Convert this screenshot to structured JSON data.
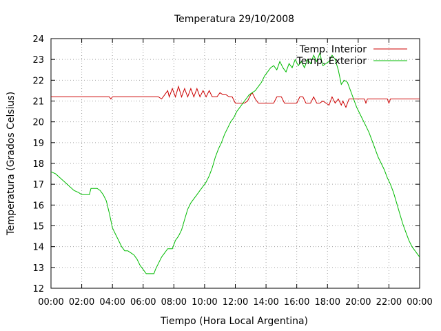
{
  "chart_data": {
    "type": "line",
    "title": "Temperatura 29/10/2008",
    "xlabel": "Tiempo (Hora Local Argentina)",
    "ylabel": "Temperatura (Grados Celsius)",
    "xlim": [
      0,
      24
    ],
    "ylim": [
      12,
      24
    ],
    "x_unit": "hours",
    "x_ticks": [
      {
        "value": 0,
        "label": "00:00"
      },
      {
        "value": 2,
        "label": "02:00"
      },
      {
        "value": 4,
        "label": "04:00"
      },
      {
        "value": 6,
        "label": "06:00"
      },
      {
        "value": 8,
        "label": "08:00"
      },
      {
        "value": 10,
        "label": "10:00"
      },
      {
        "value": 12,
        "label": "12:00"
      },
      {
        "value": 14,
        "label": "14:00"
      },
      {
        "value": 16,
        "label": "16:00"
      },
      {
        "value": 18,
        "label": "18:00"
      },
      {
        "value": 20,
        "label": "20:00"
      },
      {
        "value": 22,
        "label": "22:00"
      },
      {
        "value": 24,
        "label": "00:00"
      }
    ],
    "y_ticks": [
      12,
      13,
      14,
      15,
      16,
      17,
      18,
      19,
      20,
      21,
      22,
      23,
      24
    ],
    "grid": true,
    "legend_position": "top-right",
    "series": [
      {
        "name": "Temp. Interior",
        "color": "#cc0000",
        "points": [
          [
            0,
            21.2
          ],
          [
            3.8,
            21.2
          ],
          [
            3.9,
            21.1
          ],
          [
            4.0,
            21.2
          ],
          [
            7.0,
            21.2
          ],
          [
            7.2,
            21.1
          ],
          [
            7.4,
            21.3
          ],
          [
            7.6,
            21.5
          ],
          [
            7.7,
            21.2
          ],
          [
            7.9,
            21.6
          ],
          [
            8.1,
            21.2
          ],
          [
            8.3,
            21.7
          ],
          [
            8.5,
            21.2
          ],
          [
            8.7,
            21.6
          ],
          [
            8.9,
            21.2
          ],
          [
            9.1,
            21.6
          ],
          [
            9.3,
            21.2
          ],
          [
            9.5,
            21.6
          ],
          [
            9.7,
            21.2
          ],
          [
            9.9,
            21.5
          ],
          [
            10.1,
            21.2
          ],
          [
            10.3,
            21.5
          ],
          [
            10.5,
            21.2
          ],
          [
            10.8,
            21.2
          ],
          [
            11.0,
            21.4
          ],
          [
            11.2,
            21.3
          ],
          [
            11.4,
            21.3
          ],
          [
            11.6,
            21.2
          ],
          [
            11.8,
            21.2
          ],
          [
            12.0,
            20.9
          ],
          [
            12.6,
            20.9
          ],
          [
            12.8,
            21.0
          ],
          [
            13.0,
            21.3
          ],
          [
            13.1,
            21.4
          ],
          [
            13.3,
            21.1
          ],
          [
            13.5,
            20.9
          ],
          [
            14.5,
            20.9
          ],
          [
            14.7,
            21.2
          ],
          [
            15.0,
            21.2
          ],
          [
            15.2,
            20.9
          ],
          [
            16.0,
            20.9
          ],
          [
            16.2,
            21.2
          ],
          [
            16.4,
            21.2
          ],
          [
            16.6,
            20.9
          ],
          [
            16.9,
            20.9
          ],
          [
            17.1,
            21.2
          ],
          [
            17.3,
            20.9
          ],
          [
            17.5,
            20.9
          ],
          [
            17.7,
            21.0
          ],
          [
            17.9,
            20.9
          ],
          [
            18.1,
            20.8
          ],
          [
            18.3,
            21.2
          ],
          [
            18.5,
            20.9
          ],
          [
            18.7,
            21.1
          ],
          [
            18.9,
            20.8
          ],
          [
            19.0,
            21.0
          ],
          [
            19.2,
            20.7
          ],
          [
            19.4,
            21.1
          ],
          [
            20.4,
            21.1
          ],
          [
            20.5,
            20.9
          ],
          [
            20.6,
            21.1
          ],
          [
            21.9,
            21.1
          ],
          [
            22.0,
            20.9
          ],
          [
            22.1,
            21.1
          ],
          [
            24.0,
            21.1
          ]
        ]
      },
      {
        "name": "Temp. Exterior",
        "color": "#00bb00",
        "points": [
          [
            0,
            17.6
          ],
          [
            0.3,
            17.5
          ],
          [
            0.6,
            17.3
          ],
          [
            0.9,
            17.1
          ],
          [
            1.2,
            16.9
          ],
          [
            1.5,
            16.7
          ],
          [
            1.8,
            16.6
          ],
          [
            2.0,
            16.5
          ],
          [
            2.3,
            16.5
          ],
          [
            2.5,
            16.5
          ],
          [
            2.6,
            16.8
          ],
          [
            3.0,
            16.8
          ],
          [
            3.2,
            16.7
          ],
          [
            3.4,
            16.5
          ],
          [
            3.6,
            16.2
          ],
          [
            3.8,
            15.6
          ],
          [
            4.0,
            14.9
          ],
          [
            4.2,
            14.6
          ],
          [
            4.4,
            14.3
          ],
          [
            4.6,
            14.0
          ],
          [
            4.8,
            13.8
          ],
          [
            5.0,
            13.8
          ],
          [
            5.2,
            13.7
          ],
          [
            5.4,
            13.6
          ],
          [
            5.6,
            13.4
          ],
          [
            5.8,
            13.1
          ],
          [
            6.0,
            12.9
          ],
          [
            6.2,
            12.7
          ],
          [
            6.7,
            12.7
          ],
          [
            6.8,
            12.9
          ],
          [
            7.0,
            13.2
          ],
          [
            7.2,
            13.5
          ],
          [
            7.4,
            13.7
          ],
          [
            7.6,
            13.9
          ],
          [
            7.9,
            13.9
          ],
          [
            8.1,
            14.3
          ],
          [
            8.3,
            14.5
          ],
          [
            8.5,
            14.8
          ],
          [
            8.7,
            15.3
          ],
          [
            8.9,
            15.8
          ],
          [
            9.1,
            16.1
          ],
          [
            9.3,
            16.3
          ],
          [
            9.5,
            16.5
          ],
          [
            9.7,
            16.7
          ],
          [
            9.9,
            16.9
          ],
          [
            10.1,
            17.1
          ],
          [
            10.3,
            17.4
          ],
          [
            10.5,
            17.8
          ],
          [
            10.7,
            18.3
          ],
          [
            10.9,
            18.7
          ],
          [
            11.1,
            19.0
          ],
          [
            11.3,
            19.4
          ],
          [
            11.5,
            19.7
          ],
          [
            11.7,
            20.0
          ],
          [
            11.9,
            20.2
          ],
          [
            12.1,
            20.5
          ],
          [
            12.3,
            20.7
          ],
          [
            12.5,
            20.9
          ],
          [
            12.7,
            21.1
          ],
          [
            12.9,
            21.3
          ],
          [
            13.1,
            21.4
          ],
          [
            13.3,
            21.5
          ],
          [
            13.5,
            21.7
          ],
          [
            13.7,
            21.9
          ],
          [
            13.9,
            22.2
          ],
          [
            14.1,
            22.4
          ],
          [
            14.3,
            22.6
          ],
          [
            14.5,
            22.7
          ],
          [
            14.7,
            22.5
          ],
          [
            14.9,
            22.9
          ],
          [
            15.1,
            22.6
          ],
          [
            15.3,
            22.4
          ],
          [
            15.5,
            22.8
          ],
          [
            15.7,
            22.6
          ],
          [
            15.9,
            23.0
          ],
          [
            16.1,
            22.7
          ],
          [
            16.3,
            22.9
          ],
          [
            16.5,
            22.6
          ],
          [
            16.7,
            23.0
          ],
          [
            16.9,
            22.8
          ],
          [
            17.1,
            23.2
          ],
          [
            17.3,
            22.9
          ],
          [
            17.5,
            23.3
          ],
          [
            17.7,
            22.7
          ],
          [
            17.9,
            22.8
          ],
          [
            18.1,
            22.9
          ],
          [
            18.3,
            23.2
          ],
          [
            18.5,
            23.0
          ],
          [
            18.7,
            22.5
          ],
          [
            18.9,
            21.8
          ],
          [
            19.1,
            22.0
          ],
          [
            19.3,
            21.9
          ],
          [
            19.5,
            21.5
          ],
          [
            19.7,
            21.1
          ],
          [
            19.9,
            20.7
          ],
          [
            20.1,
            20.4
          ],
          [
            20.3,
            20.1
          ],
          [
            20.5,
            19.8
          ],
          [
            20.7,
            19.5
          ],
          [
            20.9,
            19.1
          ],
          [
            21.1,
            18.7
          ],
          [
            21.3,
            18.3
          ],
          [
            21.5,
            18.0
          ],
          [
            21.7,
            17.7
          ],
          [
            21.9,
            17.3
          ],
          [
            22.1,
            17.0
          ],
          [
            22.3,
            16.6
          ],
          [
            22.5,
            16.1
          ],
          [
            22.7,
            15.6
          ],
          [
            22.9,
            15.1
          ],
          [
            23.1,
            14.7
          ],
          [
            23.3,
            14.3
          ],
          [
            23.5,
            14.0
          ],
          [
            23.7,
            13.8
          ],
          [
            24.0,
            13.5
          ]
        ]
      }
    ]
  }
}
